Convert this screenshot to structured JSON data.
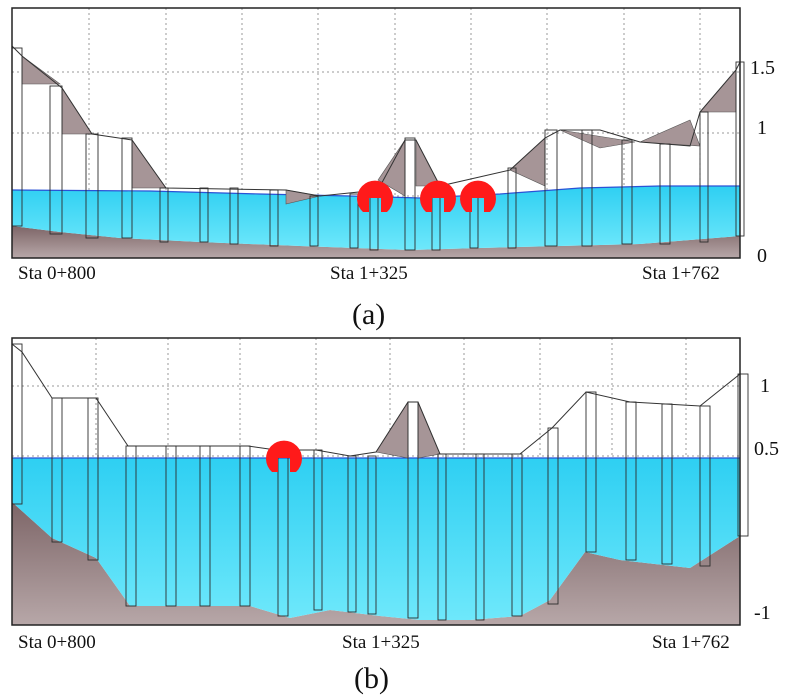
{
  "panels": [
    {
      "id": "a",
      "caption": "(a)",
      "stations": [
        "Sta 0+800",
        "Sta 1+325",
        "Sta 1+762"
      ],
      "y_ticks": [
        "1.5",
        "1",
        "0"
      ],
      "colors": {
        "water": "#33d6f5",
        "ground": "#8c7476",
        "slope": "#a69597",
        "marker": "#ff1a1a"
      },
      "marker_count": 3
    },
    {
      "id": "b",
      "caption": "(b)",
      "stations": [
        "Sta 0+800",
        "Sta 1+325",
        "Sta 1+762"
      ],
      "y_ticks": [
        "1",
        "0.5",
        "-1"
      ],
      "colors": {
        "water": "#33d6f5",
        "ground": "#8c7476",
        "slope": "#a69597",
        "marker": "#ff1a1a"
      },
      "marker_count": 1
    }
  ]
}
